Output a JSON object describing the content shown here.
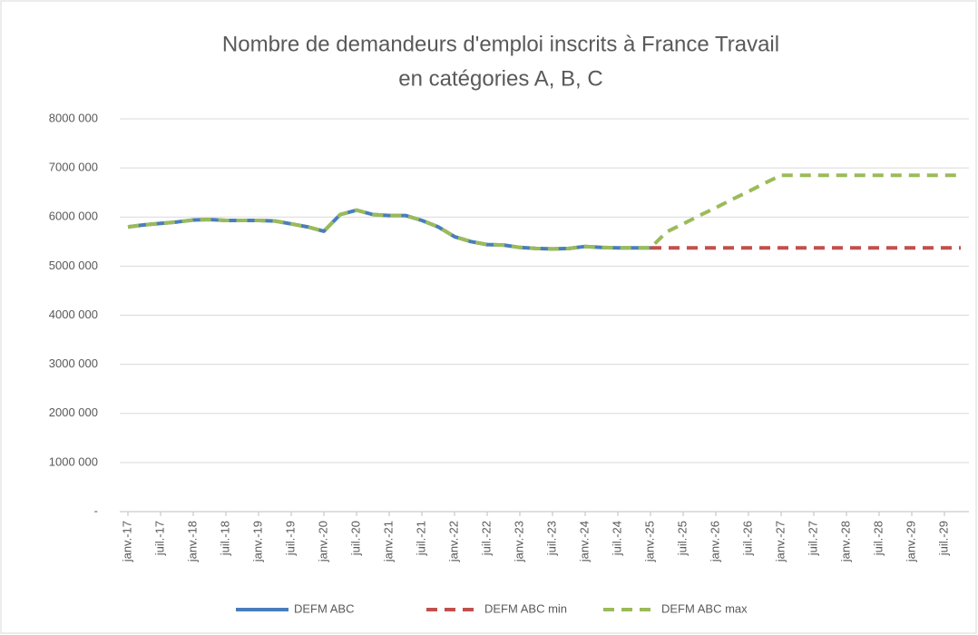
{
  "chart_data": {
    "type": "line",
    "title": [
      "Nombre de demandeurs d'emploi inscrits à France Travail",
      "en catégories A, B, C"
    ],
    "categories": [
      "janv.-17",
      null,
      "juil.-17",
      null,
      "janv.-18",
      null,
      "juil.-18",
      null,
      "janv.-19",
      null,
      "juil.-19",
      null,
      "janv.-20",
      null,
      "juil.-20",
      null,
      "janv.-21",
      null,
      "juil.-21",
      null,
      "janv.-22",
      null,
      "juil.-22",
      null,
      "janv.-23",
      null,
      "juil.-23",
      null,
      "janv.-24",
      null,
      "juil.-24",
      null,
      "janv.-25",
      null,
      "juil.-25",
      null,
      "janv.-26",
      null,
      "juil.-26",
      null,
      "janv.-27",
      null,
      "juil.-27",
      null,
      "janv.-28",
      null,
      "juil.-28",
      null,
      "janv.-29",
      null,
      "juil.-29",
      null
    ],
    "series": [
      {
        "name": "DEFM ABC",
        "color": "#4a7ebb",
        "dash": false,
        "values": [
          5800000,
          5840000,
          5870000,
          5900000,
          5940000,
          5950000,
          5930000,
          5930000,
          5930000,
          5920000,
          5860000,
          5800000,
          5710000,
          6050000,
          6140000,
          6050000,
          6030000,
          6030000,
          5930000,
          5800000,
          5600000,
          5500000,
          5440000,
          5430000,
          5380000,
          5360000,
          5350000,
          5360000,
          5400000,
          5380000,
          5370000,
          5370000,
          5370000,
          null,
          null,
          null,
          null,
          null,
          null,
          null,
          null,
          null,
          null,
          null,
          null,
          null,
          null,
          null,
          null,
          null,
          null,
          null
        ]
      },
      {
        "name": "DEFM ABC min",
        "color": "#c0504d",
        "dash": true,
        "values": [
          null,
          null,
          null,
          null,
          null,
          null,
          null,
          null,
          null,
          null,
          null,
          null,
          null,
          null,
          null,
          null,
          null,
          null,
          null,
          null,
          null,
          null,
          null,
          null,
          null,
          null,
          null,
          null,
          null,
          null,
          null,
          null,
          5370000,
          5370000,
          5370000,
          5370000,
          5370000,
          5370000,
          5370000,
          5370000,
          5370000,
          5370000,
          5370000,
          5370000,
          5370000,
          5370000,
          5370000,
          5370000,
          5370000,
          5370000,
          5370000,
          5370000
        ]
      },
      {
        "name": "DEFM ABC max",
        "color": "#9bbb59",
        "dash": true,
        "values": [
          5800000,
          5840000,
          5870000,
          5900000,
          5940000,
          5950000,
          5930000,
          5930000,
          5930000,
          5920000,
          5860000,
          5800000,
          5710000,
          6050000,
          6140000,
          6050000,
          6030000,
          6030000,
          5930000,
          5800000,
          5600000,
          5500000,
          5440000,
          5430000,
          5380000,
          5360000,
          5350000,
          5360000,
          5400000,
          5380000,
          5370000,
          5370000,
          5370000,
          5700000,
          5860000,
          6030000,
          6190000,
          6360000,
          6520000,
          6690000,
          6850000,
          6850000,
          6850000,
          6850000,
          6850000,
          6850000,
          6850000,
          6850000,
          6850000,
          6850000,
          6850000,
          6850000
        ]
      }
    ],
    "ylim": [
      0,
      8000000
    ],
    "yticks": [
      {
        "value": 0,
        "label": "-"
      },
      {
        "value": 1000000,
        "label": "1000 000"
      },
      {
        "value": 2000000,
        "label": "2000 000"
      },
      {
        "value": 3000000,
        "label": "3000 000"
      },
      {
        "value": 4000000,
        "label": "4000 000"
      },
      {
        "value": 5000000,
        "label": "5000 000"
      },
      {
        "value": 6000000,
        "label": "6000 000"
      },
      {
        "value": 7000000,
        "label": "7000 000"
      },
      {
        "value": 8000000,
        "label": "8000 000"
      }
    ],
    "grid": true,
    "legend": "bottom"
  }
}
